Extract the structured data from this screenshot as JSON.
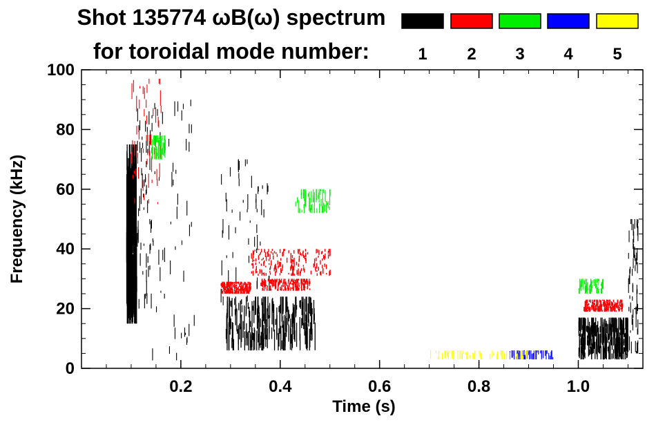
{
  "chart_data": {
    "type": "spectrogram",
    "title_line1": "Shot 135774 ωB(ω) spectrum",
    "title_line2": "for toroidal mode number:",
    "xlabel": "Time (s)",
    "ylabel": "Frequency (kHz)",
    "xlim": [
      0.0,
      1.13
    ],
    "ylim": [
      0,
      100
    ],
    "x_ticks": [
      "0.2",
      "0.4",
      "0.6",
      "0.8",
      "1.0"
    ],
    "y_ticks": [
      "0",
      "20",
      "40",
      "60",
      "80",
      "100"
    ],
    "legend": [
      {
        "label": "1",
        "color": "#000000"
      },
      {
        "label": "2",
        "color": "#ff0000"
      },
      {
        "label": "3",
        "color": "#00ee00"
      },
      {
        "label": "4",
        "color": "#0000ff"
      },
      {
        "label": "5",
        "color": "#ffff00"
      }
    ],
    "series": [
      {
        "mode": "1",
        "segments": [
          {
            "t": [
              0.09,
              0.11
            ],
            "f": [
              15,
              75
            ],
            "density": "dense"
          },
          {
            "t": [
              0.11,
              0.14
            ],
            "f": [
              20,
              95
            ],
            "density": "sparse"
          },
          {
            "t": [
              0.14,
              0.23
            ],
            "f": [
              2,
              90
            ],
            "density": "sparse"
          },
          {
            "t": [
              0.29,
              0.47
            ],
            "f": [
              6,
              24
            ],
            "density": "dense"
          },
          {
            "t": [
              0.28,
              0.38
            ],
            "f": [
              20,
              70
            ],
            "density": "sparse"
          },
          {
            "t": [
              1.0,
              1.1
            ],
            "f": [
              3,
              17
            ],
            "density": "dense"
          },
          {
            "t": [
              1.1,
              1.12
            ],
            "f": [
              5,
              50
            ],
            "density": "sparse"
          }
        ]
      },
      {
        "mode": "2",
        "segments": [
          {
            "t": [
              0.1,
              0.16
            ],
            "f": [
              55,
              97
            ],
            "density": "sparse"
          },
          {
            "t": [
              0.28,
              0.34
            ],
            "f": [
              25,
              29
            ],
            "density": "band"
          },
          {
            "t": [
              0.34,
              0.5
            ],
            "f": [
              31,
              40
            ],
            "density": "band"
          },
          {
            "t": [
              0.36,
              0.46
            ],
            "f": [
              26,
              30
            ],
            "density": "band"
          },
          {
            "t": [
              1.01,
              1.09
            ],
            "f": [
              19,
              23
            ],
            "density": "band"
          }
        ]
      },
      {
        "mode": "3",
        "segments": [
          {
            "t": [
              0.14,
              0.17
            ],
            "f": [
              70,
              78
            ],
            "density": "sparse"
          },
          {
            "t": [
              0.43,
              0.5
            ],
            "f": [
              52,
              60
            ],
            "density": "sparse"
          },
          {
            "t": [
              1.0,
              1.05
            ],
            "f": [
              25,
              30
            ],
            "density": "sparse"
          }
        ]
      },
      {
        "mode": "4",
        "segments": [
          {
            "t": [
              0.86,
              0.95
            ],
            "f": [
              3,
              6
            ],
            "density": "sparse"
          }
        ]
      },
      {
        "mode": "5",
        "segments": [
          {
            "t": [
              0.69,
              0.9
            ],
            "f": [
              3,
              6
            ],
            "density": "sparse"
          }
        ]
      }
    ]
  }
}
